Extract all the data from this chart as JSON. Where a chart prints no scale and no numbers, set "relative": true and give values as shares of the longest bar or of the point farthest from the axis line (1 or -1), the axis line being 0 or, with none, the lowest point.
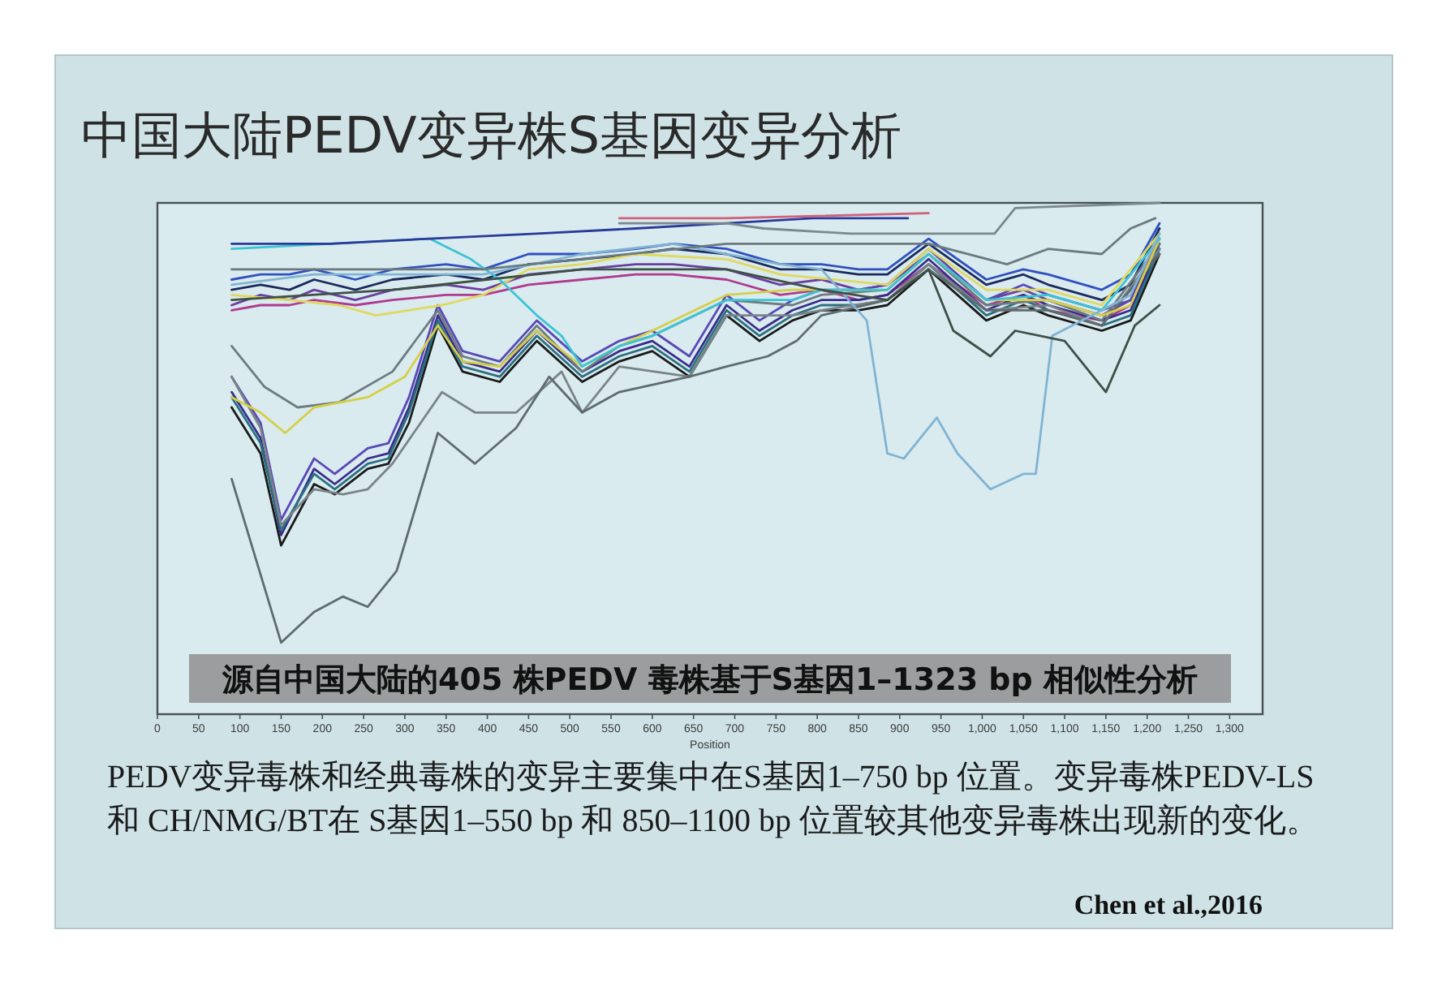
{
  "chart_data": {
    "type": "line",
    "title": "中国大陆PEDV变异株S基因变异分析",
    "xlabel": "Position",
    "annotations": [
      "源自中国大陆的405 株PEDV 毒株基于S基因1–1323 bp 相似性分析",
      "PEDV变异毒株和经典毒株的变异主要集中在S基因1–750 bp 位置。变异毒株PEDV-LS 和 CH/NMG/BT在 S基因1–550 bp 和 850–1100 bp 位置较其他变异毒株出现新的变化。",
      "Chen et al.,2016"
    ],
    "relative": true,
    "xlim": [
      0,
      1340
    ],
    "xticks": [
      0,
      50,
      100,
      150,
      200,
      250,
      300,
      350,
      400,
      450,
      500,
      550,
      600,
      650,
      700,
      750,
      800,
      850,
      900,
      950,
      {
        "value": 1000,
        "label": "1,000"
      },
      {
        "value": 1050,
        "label": "1,050"
      },
      {
        "value": 1100,
        "label": "1,100"
      },
      {
        "value": 1150,
        "label": "1,150"
      },
      {
        "value": 1200,
        "label": "1,200"
      },
      {
        "value": 1250,
        "label": "1,250"
      },
      {
        "value": 1300,
        "label": "1,300"
      }
    ],
    "series": [
      {
        "color": "#1b2a5e",
        "x": [
          90,
          125,
          160,
          190,
          240,
          285,
          350,
          395,
          450,
          515,
          580,
          625,
          690,
          755,
          805,
          850,
          885,
          935,
          1005,
          1050,
          1080,
          1145,
          1180,
          1215
        ],
        "values": [
          0.83,
          0.84,
          0.83,
          0.85,
          0.83,
          0.85,
          0.86,
          0.85,
          0.88,
          0.89,
          0.9,
          0.91,
          0.9,
          0.87,
          0.87,
          0.86,
          0.86,
          0.92,
          0.84,
          0.86,
          0.84,
          0.81,
          0.84,
          0.95
        ]
      },
      {
        "color": "#6b3fa0",
        "x": [
          90,
          125,
          160,
          190,
          240,
          285,
          350,
          395,
          450,
          515,
          580,
          625,
          690,
          755,
          805,
          850,
          885,
          935,
          1005,
          1050,
          1080,
          1145,
          1180,
          1215
        ],
        "values": [
          0.8,
          0.82,
          0.81,
          0.83,
          0.81,
          0.83,
          0.84,
          0.83,
          0.86,
          0.87,
          0.88,
          0.88,
          0.87,
          0.84,
          0.85,
          0.83,
          0.84,
          0.9,
          0.81,
          0.83,
          0.81,
          0.78,
          0.81,
          0.93
        ]
      },
      {
        "color": "#3050c0",
        "x": [
          90,
          125,
          160,
          190,
          240,
          285,
          350,
          395,
          450,
          515,
          580,
          625,
          690,
          755,
          805,
          850,
          885,
          935,
          1005,
          1050,
          1080,
          1145,
          1180,
          1215
        ],
        "values": [
          0.85,
          0.86,
          0.86,
          0.87,
          0.85,
          0.87,
          0.88,
          0.87,
          0.9,
          0.9,
          0.91,
          0.92,
          0.91,
          0.88,
          0.88,
          0.87,
          0.87,
          0.93,
          0.85,
          0.87,
          0.86,
          0.83,
          0.86,
          0.96
        ]
      },
      {
        "color": "#b03a90",
        "x": [
          90,
          125,
          160,
          190,
          240,
          285,
          350,
          395,
          450,
          515,
          580,
          625,
          690,
          755,
          805,
          850,
          885,
          935,
          1005,
          1050,
          1080,
          1145,
          1180,
          1215
        ],
        "values": [
          0.79,
          0.8,
          0.8,
          0.81,
          0.8,
          0.81,
          0.82,
          0.82,
          0.84,
          0.85,
          0.86,
          0.86,
          0.85,
          0.82,
          0.83,
          0.81,
          0.82,
          0.88,
          0.8,
          0.82,
          0.79,
          0.77,
          0.8,
          0.91
        ]
      },
      {
        "color": "#3a2c8c",
        "x": [
          90,
          125,
          150,
          190,
          215,
          255,
          280,
          305,
          340,
          370,
          415,
          460,
          515,
          560,
          600,
          645,
          690,
          730,
          770,
          805,
          850,
          885,
          935,
          1005,
          1050,
          1080,
          1145,
          1180,
          1215
        ],
        "values": [
          0.63,
          0.54,
          0.35,
          0.48,
          0.45,
          0.5,
          0.51,
          0.6,
          0.78,
          0.69,
          0.67,
          0.75,
          0.67,
          0.71,
          0.73,
          0.68,
          0.8,
          0.75,
          0.79,
          0.81,
          0.81,
          0.82,
          0.89,
          0.79,
          0.82,
          0.8,
          0.77,
          0.79,
          0.92
        ]
      },
      {
        "color": "#1a1a1a",
        "x": [
          90,
          125,
          150,
          190,
          215,
          255,
          280,
          305,
          340,
          370,
          415,
          460,
          515,
          560,
          600,
          645,
          690,
          730,
          770,
          805,
          850,
          885,
          935,
          1005,
          1050,
          1080,
          1145,
          1180,
          1215
        ],
        "values": [
          0.6,
          0.51,
          0.33,
          0.45,
          0.43,
          0.48,
          0.49,
          0.57,
          0.76,
          0.67,
          0.65,
          0.73,
          0.65,
          0.69,
          0.71,
          0.66,
          0.78,
          0.73,
          0.77,
          0.79,
          0.79,
          0.8,
          0.87,
          0.77,
          0.8,
          0.78,
          0.75,
          0.77,
          0.9
        ]
      },
      {
        "color": "#5a48b8",
        "x": [
          90,
          125,
          150,
          190,
          215,
          255,
          280,
          305,
          340,
          370,
          415,
          460,
          515,
          560,
          600,
          645,
          690,
          730,
          770,
          805,
          850,
          885,
          935,
          1005,
          1050,
          1080,
          1145,
          1180,
          1215
        ],
        "values": [
          0.66,
          0.57,
          0.38,
          0.5,
          0.47,
          0.52,
          0.53,
          0.62,
          0.8,
          0.71,
          0.69,
          0.77,
          0.69,
          0.73,
          0.75,
          0.7,
          0.82,
          0.77,
          0.81,
          0.83,
          0.83,
          0.84,
          0.91,
          0.81,
          0.84,
          0.82,
          0.79,
          0.81,
          0.94
        ]
      },
      {
        "color": "#2a7080",
        "x": [
          90,
          125,
          150,
          190,
          215,
          255,
          280,
          305,
          340,
          370,
          415,
          460,
          515,
          560,
          600,
          645,
          690,
          730,
          770,
          805,
          850,
          885,
          935,
          1005,
          1050,
          1080,
          1145,
          1180,
          1215
        ],
        "values": [
          0.62,
          0.53,
          0.36,
          0.47,
          0.44,
          0.49,
          0.5,
          0.59,
          0.77,
          0.68,
          0.66,
          0.74,
          0.66,
          0.7,
          0.72,
          0.67,
          0.79,
          0.74,
          0.78,
          0.8,
          0.8,
          0.81,
          0.88,
          0.78,
          0.81,
          0.79,
          0.76,
          0.78,
          0.91
        ]
      },
      {
        "color": "#6e7c80",
        "x": [
          90,
          130,
          170,
          220,
          285,
          340,
          370,
          415,
          460,
          515,
          560,
          600,
          690,
          770,
          805,
          885,
          935,
          1005,
          1080,
          1145,
          1215
        ],
        "values": [
          0.72,
          0.64,
          0.6,
          0.61,
          0.67,
          0.79,
          0.7,
          0.68,
          0.76,
          0.67,
          0.72,
          0.74,
          0.81,
          0.8,
          0.82,
          0.83,
          0.9,
          0.8,
          0.81,
          0.77,
          0.92
        ]
      },
      {
        "color": "#7a8488",
        "x": [
          90,
          125,
          150,
          190,
          225,
          255,
          285,
          345,
          385,
          435,
          490,
          515,
          560,
          645,
          690,
          770,
          805,
          885,
          935,
          1005,
          1080,
          1145,
          1215
        ],
        "values": [
          0.66,
          0.56,
          0.37,
          0.44,
          0.43,
          0.44,
          0.49,
          0.63,
          0.59,
          0.59,
          0.67,
          0.59,
          0.68,
          0.66,
          0.78,
          0.78,
          0.79,
          0.81,
          0.88,
          0.79,
          0.8,
          0.76,
          0.91
        ]
      },
      {
        "color": "#5f6b6e",
        "x": [
          90,
          150,
          190,
          225,
          255,
          290,
          340,
          385,
          435,
          475,
          515,
          560,
          645,
          690,
          740,
          775,
          805,
          885,
          935,
          1005,
          1080,
          1145,
          1215
        ],
        "values": [
          0.46,
          0.14,
          0.2,
          0.23,
          0.21,
          0.28,
          0.55,
          0.49,
          0.56,
          0.66,
          0.59,
          0.63,
          0.66,
          0.68,
          0.7,
          0.73,
          0.78,
          0.81,
          0.87,
          0.79,
          0.79,
          0.76,
          0.9
        ]
      },
      {
        "color": "#d6cf48",
        "x": [
          90,
          125,
          155,
          190,
          255,
          300,
          340,
          370,
          415,
          460,
          515,
          560,
          600,
          690,
          770,
          805,
          885,
          935,
          1005,
          1080,
          1145,
          1180,
          1215
        ],
        "values": [
          0.62,
          0.59,
          0.55,
          0.6,
          0.62,
          0.66,
          0.76,
          0.69,
          0.68,
          0.75,
          0.68,
          0.72,
          0.75,
          0.82,
          0.83,
          0.83,
          0.83,
          0.9,
          0.81,
          0.81,
          0.78,
          0.8,
          0.93
        ]
      },
      {
        "color": "#e0d860",
        "x": [
          90,
          160,
          220,
          265,
          305,
          345,
          395,
          450,
          515,
          580,
          690,
          755,
          885,
          935,
          1005,
          1080,
          1145,
          1215
        ],
        "values": [
          0.82,
          0.81,
          0.8,
          0.78,
          0.79,
          0.8,
          0.82,
          0.87,
          0.88,
          0.9,
          0.89,
          0.86,
          0.84,
          0.91,
          0.83,
          0.83,
          0.8,
          0.94
        ]
      },
      {
        "color": "#3cc4d4",
        "x": [
          90,
          210,
          330,
          380,
          415,
          460,
          490,
          515,
          560,
          600,
          690,
          770,
          805,
          885,
          935,
          1005,
          1080,
          1145,
          1215
        ],
        "values": [
          0.91,
          0.92,
          0.93,
          0.89,
          0.85,
          0.78,
          0.74,
          0.68,
          0.72,
          0.74,
          0.81,
          0.81,
          0.83,
          0.83,
          0.9,
          0.81,
          0.82,
          0.79,
          0.93
        ]
      },
      {
        "color": "#80b4d4",
        "x": [
          90,
          190,
          285,
          395,
          515,
          625,
          755,
          805,
          860,
          885,
          905,
          945,
          970,
          1010,
          1050,
          1065,
          1085,
          1145,
          1180,
          1215
        ],
        "values": [
          0.84,
          0.86,
          0.86,
          0.86,
          0.9,
          0.92,
          0.88,
          0.87,
          0.77,
          0.51,
          0.5,
          0.58,
          0.51,
          0.44,
          0.47,
          0.47,
          0.74,
          0.79,
          0.82,
          0.94
        ]
      },
      {
        "color": "#3e5048",
        "x": [
          90,
          285,
          515,
          690,
          805,
          885,
          935,
          965,
          1010,
          1040,
          1100,
          1150,
          1185,
          1215
        ],
        "values": [
          0.81,
          0.83,
          0.87,
          0.87,
          0.83,
          0.81,
          0.87,
          0.75,
          0.7,
          0.75,
          0.73,
          0.63,
          0.76,
          0.8
        ]
      },
      {
        "color": "#6c7a80",
        "x": [
          90,
          395,
          690,
          935,
          1030,
          1080,
          1145,
          1180,
          1210
        ],
        "values": [
          0.87,
          0.87,
          0.92,
          0.92,
          0.88,
          0.91,
          0.9,
          0.95,
          0.97
        ]
      },
      {
        "color": "#2a3a9a",
        "x": [
          90,
          210,
          330,
          460,
          580,
          690,
          795,
          910
        ],
        "values": [
          0.92,
          0.92,
          0.93,
          0.94,
          0.95,
          0.96,
          0.97,
          0.97
        ]
      },
      {
        "color": "#d0607a",
        "x": [
          560,
          690,
          935
        ],
        "values": [
          0.97,
          0.97,
          0.98
        ]
      },
      {
        "color": "#7a8890",
        "x": [
          560,
          690,
          735,
          840,
          1015,
          1040,
          1215
        ],
        "values": [
          0.96,
          0.96,
          0.95,
          0.94,
          0.94,
          0.99,
          1.0
        ]
      }
    ]
  }
}
